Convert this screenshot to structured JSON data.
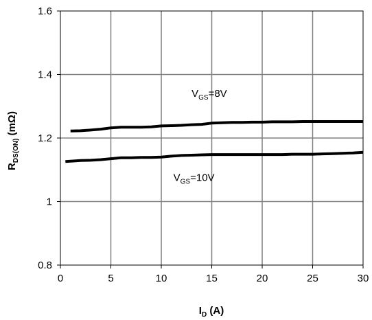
{
  "chart_data": {
    "type": "line",
    "xlabel": {
      "main": "I",
      "sub": "D",
      "rest": " (A)"
    },
    "ylabel": {
      "main": "R",
      "sub": "DS(ON)",
      "rest": " (mΩ)"
    },
    "xlim": [
      0,
      30
    ],
    "ylim": [
      0.8,
      1.6
    ],
    "x_ticks": [
      0,
      5,
      10,
      15,
      20,
      25,
      30
    ],
    "x_tick_labels": [
      "0",
      "5",
      "10",
      "15",
      "20",
      "25",
      "30"
    ],
    "y_ticks": [
      0.8,
      1.0,
      1.2,
      1.4,
      1.6
    ],
    "y_tick_labels": [
      "0.8",
      "1",
      "1.2",
      "1.4",
      "1.6"
    ],
    "grid": true,
    "series": [
      {
        "name": "VGS=8V",
        "color": "#000000",
        "x": [
          1,
          2,
          3,
          4,
          5,
          6,
          7,
          8,
          9,
          10,
          11,
          12,
          13,
          14,
          15,
          16,
          17,
          18,
          19,
          20,
          21,
          22,
          23,
          24,
          25,
          26,
          27,
          28,
          29,
          30
        ],
        "y": [
          1.222,
          1.223,
          1.225,
          1.228,
          1.232,
          1.234,
          1.234,
          1.234,
          1.235,
          1.238,
          1.239,
          1.24,
          1.242,
          1.243,
          1.247,
          1.248,
          1.249,
          1.249,
          1.25,
          1.25,
          1.251,
          1.251,
          1.251,
          1.252,
          1.252,
          1.252,
          1.252,
          1.252,
          1.252,
          1.252
        ]
      },
      {
        "name": "VGS=10V",
        "color": "#000000",
        "x": [
          0.5,
          1,
          2,
          3,
          4,
          5,
          6,
          7,
          8,
          9,
          10,
          11,
          12,
          13,
          14,
          15,
          16,
          17,
          18,
          19,
          20,
          21,
          22,
          23,
          24,
          25,
          26,
          27,
          28,
          29,
          30
        ],
        "y": [
          1.126,
          1.127,
          1.129,
          1.13,
          1.132,
          1.135,
          1.138,
          1.138,
          1.139,
          1.139,
          1.14,
          1.143,
          1.145,
          1.146,
          1.147,
          1.148,
          1.148,
          1.148,
          1.148,
          1.148,
          1.148,
          1.148,
          1.148,
          1.149,
          1.149,
          1.149,
          1.15,
          1.151,
          1.152,
          1.153,
          1.155
        ]
      }
    ],
    "annotations": [
      {
        "main": "V",
        "sub": "GS",
        "rest": "=8V",
        "x": 13.0,
        "y": 1.33
      },
      {
        "main": "V",
        "sub": "GS",
        "rest": "=10V",
        "x": 11.2,
        "y": 1.065
      }
    ]
  }
}
